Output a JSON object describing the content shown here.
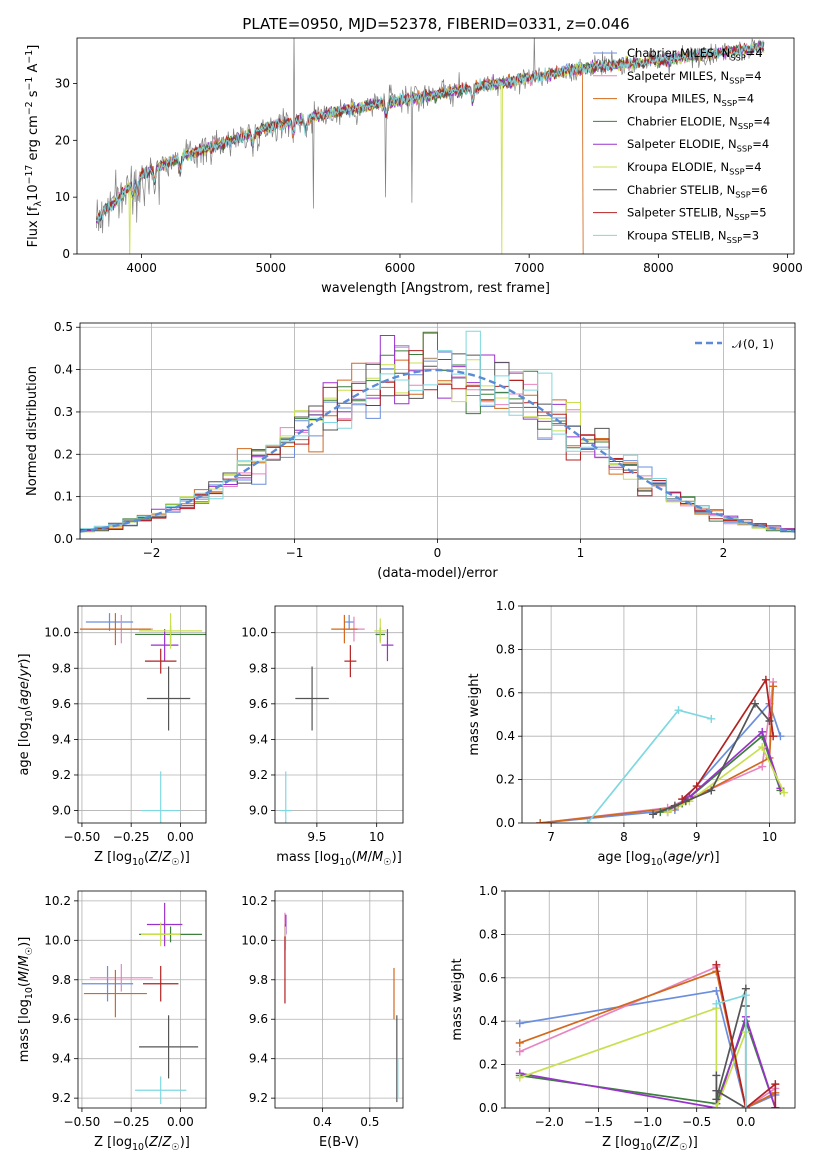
{
  "title": "PLATE=0950, MJD=52378, FIBERID=0331, z=0.046",
  "models": [
    {
      "name": "Chabrier MILES, N<sub>SSP</sub>=4",
      "color": "#6b8fdc"
    },
    {
      "name": "Salpeter MILES, N<sub>SSP</sub>=4",
      "color": "#e884c0"
    },
    {
      "name": "Kroupa MILES, N<sub>SSP</sub>=4",
      "color": "#d2691e"
    },
    {
      "name": "Chabrier ELODIE, N<sub>SSP</sub>=4",
      "color": "#3d7f3d"
    },
    {
      "name": "Salpeter ELODIE, N<sub>SSP</sub>=4",
      "color": "#9932cc"
    },
    {
      "name": "Kroupa ELODIE, N<sub>SSP</sub>=4",
      "color": "#c8e050"
    },
    {
      "name": "Chabrier STELIB, N<sub>SSP</sub>=6",
      "color": "#555555"
    },
    {
      "name": "Salpeter STELIB, N<sub>SSP</sub>=5",
      "color": "#b22222"
    },
    {
      "name": "Kroupa STELIB, N<sub>SSP</sub>=3",
      "color": "#7fd8e0"
    }
  ],
  "chart_data": [
    {
      "id": "spectrum",
      "type": "line",
      "xlabel": "wavelength [Angstrom, rest frame]",
      "ylabel": "Flux [f<sub>λ</sub>10<sup>−17</sup> erg cm<sup>−2</sup> s<sup>−1</sup> A<sup>−1</sup>]",
      "xlim": [
        3500,
        9050
      ],
      "ylim": [
        0,
        38
      ],
      "xticks": [
        4000,
        5000,
        6000,
        7000,
        8000,
        9000
      ],
      "yticks": [
        0,
        10,
        20,
        30
      ],
      "grid": false,
      "legend_position": "top-right",
      "data_color": "#808080",
      "continuum_x": [
        3650,
        4000,
        4300,
        4700,
        5000,
        5500,
        6000,
        6500,
        7000,
        7500,
        8000,
        8500,
        8800
      ],
      "continuum_y": [
        10.0,
        14.0,
        17.0,
        20.0,
        22.5,
        25.0,
        27.0,
        29.0,
        31.0,
        33.0,
        34.0,
        35.5,
        36.5
      ],
      "model_dropouts": [
        {
          "model": 5,
          "x": 3910
        },
        {
          "model": 5,
          "x": 6790
        },
        {
          "model": 2,
          "x": 7420
        }
      ]
    },
    {
      "id": "residuals",
      "type": "area",
      "xlabel": "(data-model)/error",
      "ylabel": "Normed distribution",
      "xlim": [
        -2.5,
        2.5
      ],
      "ylim": [
        0,
        0.51
      ],
      "xticks": [
        -2,
        -1,
        0,
        1,
        2
      ],
      "yticks": [
        0.0,
        0.1,
        0.2,
        0.3,
        0.4,
        0.5
      ],
      "grid": true,
      "legend": [
        {
          "name": "𝒩(0, 1)",
          "color": "#5b8bd6"
        }
      ],
      "legend_position": "top-right",
      "bin_width": 0.1
    },
    {
      "id": "age-vs-Z",
      "type": "scatter",
      "xlabel": "Z [log<sub>10</sub>(<i>Z</i>/<i>Z</i><sub>☉</sub>)]",
      "ylabel": "age [log<sub>10</sub>(<i>age</i>/<i>yr</i>)]",
      "xlim": [
        -0.52,
        0.13
      ],
      "ylim": [
        8.93,
        10.15
      ],
      "xticks": [
        -0.5,
        -0.25,
        0.0
      ],
      "xticklabels": [
        "−0.50",
        "−0.25",
        "0.00"
      ],
      "yticks": [
        9.0,
        9.2,
        9.4,
        9.6,
        9.8,
        10.0
      ],
      "grid": true,
      "points": [
        {
          "model": 0,
          "x": -0.36,
          "y": 10.06,
          "xerr": 0.12,
          "yerr": 0.05
        },
        {
          "model": 1,
          "x": -0.3,
          "y": 10.02,
          "xerr": 0.16,
          "yerr": 0.08
        },
        {
          "model": 2,
          "x": -0.33,
          "y": 10.02,
          "xerr": 0.18,
          "yerr": 0.09
        },
        {
          "model": 3,
          "x": -0.05,
          "y": 9.99,
          "xerr": 0.18,
          "yerr": 0.05
        },
        {
          "model": 4,
          "x": -0.08,
          "y": 9.93,
          "xerr": 0.07,
          "yerr": 0.09
        },
        {
          "model": 5,
          "x": -0.05,
          "y": 10.01,
          "xerr": 0.16,
          "yerr": 0.1
        },
        {
          "model": 6,
          "x": -0.06,
          "y": 9.63,
          "xerr": 0.11,
          "yerr": 0.18
        },
        {
          "model": 7,
          "x": -0.1,
          "y": 9.84,
          "xerr": 0.08,
          "yerr": 0.07
        },
        {
          "model": 8,
          "x": -0.1,
          "y": 9.0,
          "xerr": 0.1,
          "yerr": 0.22
        }
      ]
    },
    {
      "id": "age-vs-mass",
      "type": "scatter",
      "xlabel": "mass [log<sub>10</sub>(<i>M</i>/<i>M</i><sub>☉</sub>)]",
      "ylabel": "",
      "xlim": [
        9.15,
        10.22
      ],
      "ylim": [
        8.93,
        10.15
      ],
      "xticks": [
        9.5,
        10.0
      ],
      "yticks": [
        9.0,
        9.2,
        9.4,
        9.6,
        9.8,
        10.0
      ],
      "grid": true,
      "points": [
        {
          "model": 0,
          "x": 9.77,
          "y": 10.06,
          "xerr": 0.04,
          "yerr": 0.04
        },
        {
          "model": 1,
          "x": 9.81,
          "y": 10.02,
          "xerr": 0.09,
          "yerr": 0.07
        },
        {
          "model": 2,
          "x": 9.73,
          "y": 10.02,
          "xerr": 0.11,
          "yerr": 0.08
        },
        {
          "model": 3,
          "x": 10.03,
          "y": 9.99,
          "xerr": 0.04,
          "yerr": 0.04
        },
        {
          "model": 4,
          "x": 10.09,
          "y": 9.93,
          "xerr": 0.05,
          "yerr": 0.09
        },
        {
          "model": 5,
          "x": 10.03,
          "y": 10.01,
          "xerr": 0.05,
          "yerr": 0.07
        },
        {
          "model": 6,
          "x": 9.46,
          "y": 9.63,
          "xerr": 0.14,
          "yerr": 0.18
        },
        {
          "model": 7,
          "x": 9.78,
          "y": 9.84,
          "xerr": 0.05,
          "yerr": 0.09
        },
        {
          "model": 8,
          "x": 9.24,
          "y": 9.0,
          "xerr": 0.05,
          "yerr": 0.22
        }
      ]
    },
    {
      "id": "massweight-vs-age",
      "type": "line",
      "xlabel": "age [log<sub>10</sub>(<i>age</i>/<i>yr</i>)]",
      "ylabel": "mass weight",
      "xlim": [
        6.6,
        10.35
      ],
      "ylim": [
        0,
        1.0
      ],
      "xticks": [
        7,
        8,
        9,
        10
      ],
      "yticks": [
        0.0,
        0.2,
        0.4,
        0.6,
        0.8,
        1.0
      ],
      "grid": true,
      "series": [
        {
          "model": 0,
          "x": [
            6.85,
            8.7,
            10.0,
            10.15
          ],
          "y": [
            0.0,
            0.06,
            0.55,
            0.4
          ]
        },
        {
          "model": 1,
          "x": [
            6.85,
            8.6,
            9.9,
            10.05
          ],
          "y": [
            0.0,
            0.07,
            0.26,
            0.65
          ]
        },
        {
          "model": 2,
          "x": [
            6.85,
            8.7,
            10.0,
            10.05
          ],
          "y": [
            0.0,
            0.07,
            0.3,
            0.63
          ]
        },
        {
          "model": 3,
          "x": [
            8.5,
            8.8,
            9.9,
            10.15
          ],
          "y": [
            0.05,
            0.09,
            0.4,
            0.15
          ]
        },
        {
          "model": 4,
          "x": [
            8.6,
            8.9,
            9.9,
            10.15
          ],
          "y": [
            0.05,
            0.12,
            0.42,
            0.16
          ]
        },
        {
          "model": 5,
          "x": [
            8.6,
            8.9,
            9.9,
            10.2
          ],
          "y": [
            0.05,
            0.1,
            0.35,
            0.14
          ]
        },
        {
          "model": 6,
          "x": [
            8.4,
            8.7,
            8.85,
            9.2,
            9.8,
            10.0
          ],
          "y": [
            0.04,
            0.08,
            0.1,
            0.15,
            0.55,
            0.47
          ]
        },
        {
          "model": 7,
          "x": [
            8.8,
            9.0,
            9.95,
            10.05
          ],
          "y": [
            0.11,
            0.17,
            0.66,
            0.4
          ]
        },
        {
          "model": 8,
          "x": [
            7.5,
            8.75,
            9.2
          ],
          "y": [
            0.0,
            0.52,
            0.48
          ]
        }
      ]
    },
    {
      "id": "mass-vs-Z",
      "type": "scatter",
      "xlabel": "Z [log<sub>10</sub>(<i>Z</i>/<i>Z</i><sub>☉</sub>)]",
      "ylabel": "mass [log<sub>10</sub>(<i>M</i>/<i>M</i><sub>☉</sub>)]",
      "xlim": [
        -0.52,
        0.13
      ],
      "ylim": [
        9.15,
        10.25
      ],
      "xticks": [
        -0.5,
        -0.25,
        0.0
      ],
      "xticklabels": [
        "−0.50",
        "−0.25",
        "0.00"
      ],
      "yticks": [
        9.2,
        9.4,
        9.6,
        9.8,
        10.0,
        10.2
      ],
      "grid": true,
      "points": [
        {
          "model": 0,
          "x": -0.37,
          "y": 9.78,
          "xerr": 0.13,
          "yerr": 0.09
        },
        {
          "model": 1,
          "x": -0.3,
          "y": 9.81,
          "xerr": 0.16,
          "yerr": 0.07
        },
        {
          "model": 2,
          "x": -0.33,
          "y": 9.73,
          "xerr": 0.16,
          "yerr": 0.12
        },
        {
          "model": 3,
          "x": -0.05,
          "y": 10.03,
          "xerr": 0.16,
          "yerr": 0.04
        },
        {
          "model": 4,
          "x": -0.08,
          "y": 10.08,
          "xerr": 0.09,
          "yerr": 0.11
        },
        {
          "model": 5,
          "x": -0.1,
          "y": 10.03,
          "xerr": 0.1,
          "yerr": 0.06
        },
        {
          "model": 6,
          "x": -0.06,
          "y": 9.46,
          "xerr": 0.15,
          "yerr": 0.16
        },
        {
          "model": 7,
          "x": -0.1,
          "y": 9.78,
          "xerr": 0.09,
          "yerr": 0.09
        },
        {
          "model": 8,
          "x": -0.1,
          "y": 9.24,
          "xerr": 0.13,
          "yerr": 0.07
        }
      ]
    },
    {
      "id": "mass-vs-EBV",
      "type": "scatter",
      "xlabel": "E(B-V)",
      "ylabel": "",
      "xlim": [
        0.3,
        0.57
      ],
      "ylim": [
        9.15,
        10.25
      ],
      "xticks": [
        0.4,
        0.5
      ],
      "yticks": [
        9.2,
        9.4,
        9.6,
        9.8,
        10.0,
        10.2
      ],
      "grid": true,
      "points": [
        {
          "model": 0,
          "x": 0.322,
          "y": 10.06,
          "xerr": 0.0,
          "yerr": 0.07
        },
        {
          "model": 1,
          "x": 0.321,
          "y": 10.02,
          "xerr": 0.0,
          "yerr": 0.12
        },
        {
          "model": 2,
          "x": 0.551,
          "y": 9.73,
          "xerr": 0.0,
          "yerr": 0.13
        },
        {
          "model": 3,
          "x": 0.322,
          "y": 10.03,
          "xerr": 0.0,
          "yerr": 0.05
        },
        {
          "model": 4,
          "x": 0.323,
          "y": 10.08,
          "xerr": 0.0,
          "yerr": 0.05
        },
        {
          "model": 5,
          "x": 0.322,
          "y": 10.01,
          "xerr": 0.0,
          "yerr": 0.06
        },
        {
          "model": 6,
          "x": 0.557,
          "y": 9.4,
          "xerr": 0.0,
          "yerr": 0.22
        },
        {
          "model": 7,
          "x": 0.321,
          "y": 9.85,
          "xerr": 0.0,
          "yerr": 0.17
        },
        {
          "model": 8,
          "x": 0.559,
          "y": 9.3,
          "xerr": 0.0,
          "yerr": 0.1
        }
      ]
    },
    {
      "id": "massweight-vs-Z",
      "type": "line",
      "xlabel": "Z [log<sub>10</sub>(<i>Z</i>/<i>Z</i><sub>☉</sub>)]",
      "ylabel": "mass weight",
      "xlim": [
        -2.45,
        0.5
      ],
      "ylim": [
        0,
        1.0
      ],
      "xticks": [
        -2.0,
        -1.5,
        -1.0,
        -0.5,
        0.0
      ],
      "xticklabels": [
        "−2.0",
        "−1.5",
        "−1.0",
        "−0.5",
        "0.0"
      ],
      "yticks": [
        0.0,
        0.2,
        0.4,
        0.6,
        0.8,
        1.0
      ],
      "grid": true,
      "series": [
        {
          "model": 0,
          "x": [
            -2.3,
            -0.3,
            0.0,
            0.3
          ],
          "y": [
            0.39,
            0.54,
            0.0,
            0.06
          ]
        },
        {
          "model": 1,
          "x": [
            -2.3,
            -0.3,
            0.0,
            0.3
          ],
          "y": [
            0.26,
            0.65,
            0.0,
            0.09
          ]
        },
        {
          "model": 2,
          "x": [
            -2.3,
            -0.3,
            0.0,
            0.3
          ],
          "y": [
            0.3,
            0.63,
            0.0,
            0.07
          ]
        },
        {
          "model": 3,
          "x": [
            -2.3,
            -0.3,
            0.0,
            0.3
          ],
          "y": [
            0.15,
            0.02,
            0.4,
            0.0
          ]
        },
        {
          "model": 4,
          "x": [
            -2.3,
            -0.3,
            0.0,
            0.3
          ],
          "y": [
            0.16,
            0.0,
            0.42,
            0.0
          ]
        },
        {
          "model": 5,
          "x": [
            -2.3,
            -0.3,
            -0.3,
            0.0
          ],
          "y": [
            0.14,
            0.46,
            0.0,
            0.35
          ]
        },
        {
          "model": 6,
          "x": [
            -0.3,
            -0.3,
            0.0,
            0.0,
            0.0,
            -0.3
          ],
          "y": [
            0.15,
            0.04,
            0.55,
            0.47,
            0.0,
            0.08
          ]
        },
        {
          "model": 7,
          "x": [
            -0.3,
            0.0,
            0.3,
            0.3
          ],
          "y": [
            0.66,
            0.0,
            0.11,
            0.0
          ]
        },
        {
          "model": 8,
          "x": [
            -0.3,
            0.0,
            0.0
          ],
          "y": [
            0.48,
            0.52,
            0.0
          ]
        }
      ]
    }
  ]
}
